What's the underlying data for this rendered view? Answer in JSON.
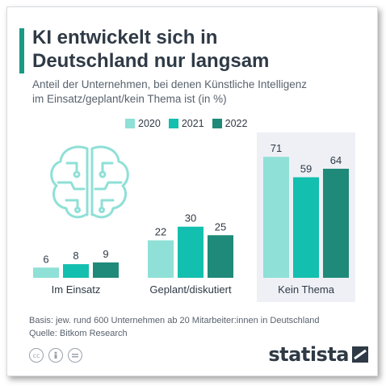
{
  "title": "KI entwickelt sich in Deutschland nur langsam",
  "subtitle_line1": "Anteil der Unternehmen, bei denen Künstliche Intelligenz",
  "subtitle_line2": "im Einsatz/geplant/kein Thema ist (in %)",
  "source_line1": "Basis: jew. rund 600 Unternehmen ab 20 Mitarbeiter:innen in Deutschland",
  "source_line2": "Quelle: Bitkom Research",
  "logo_text": "statista",
  "icons": [
    "cc-icon",
    "person-icon",
    "equals-icon",
    "brain-icon",
    "statista-logo-icon"
  ],
  "colors": {
    "accent": "#1a9a85",
    "series_2020": "#8fe0d6",
    "series_2021": "#13bfae",
    "series_2022": "#1f8a79",
    "highlight_bg": "#eef0f6",
    "text_dark": "#2f3a46",
    "text_muted": "#58626d"
  },
  "chart_data": {
    "type": "bar",
    "title": "KI entwickelt sich in Deutschland nur langsam",
    "categories": [
      "Im Einsatz",
      "Geplant/diskutiert",
      "Kein Thema"
    ],
    "series": [
      {
        "name": "2020",
        "values": [
          6,
          22,
          71
        ]
      },
      {
        "name": "2021",
        "values": [
          8,
          30,
          59
        ]
      },
      {
        "name": "2022",
        "values": [
          9,
          25,
          64
        ]
      }
    ],
    "ylim": [
      0,
      71
    ],
    "highlighted_category": "Kein Thema",
    "legend_position": "top-center",
    "grid": false,
    "data_labels": true
  }
}
